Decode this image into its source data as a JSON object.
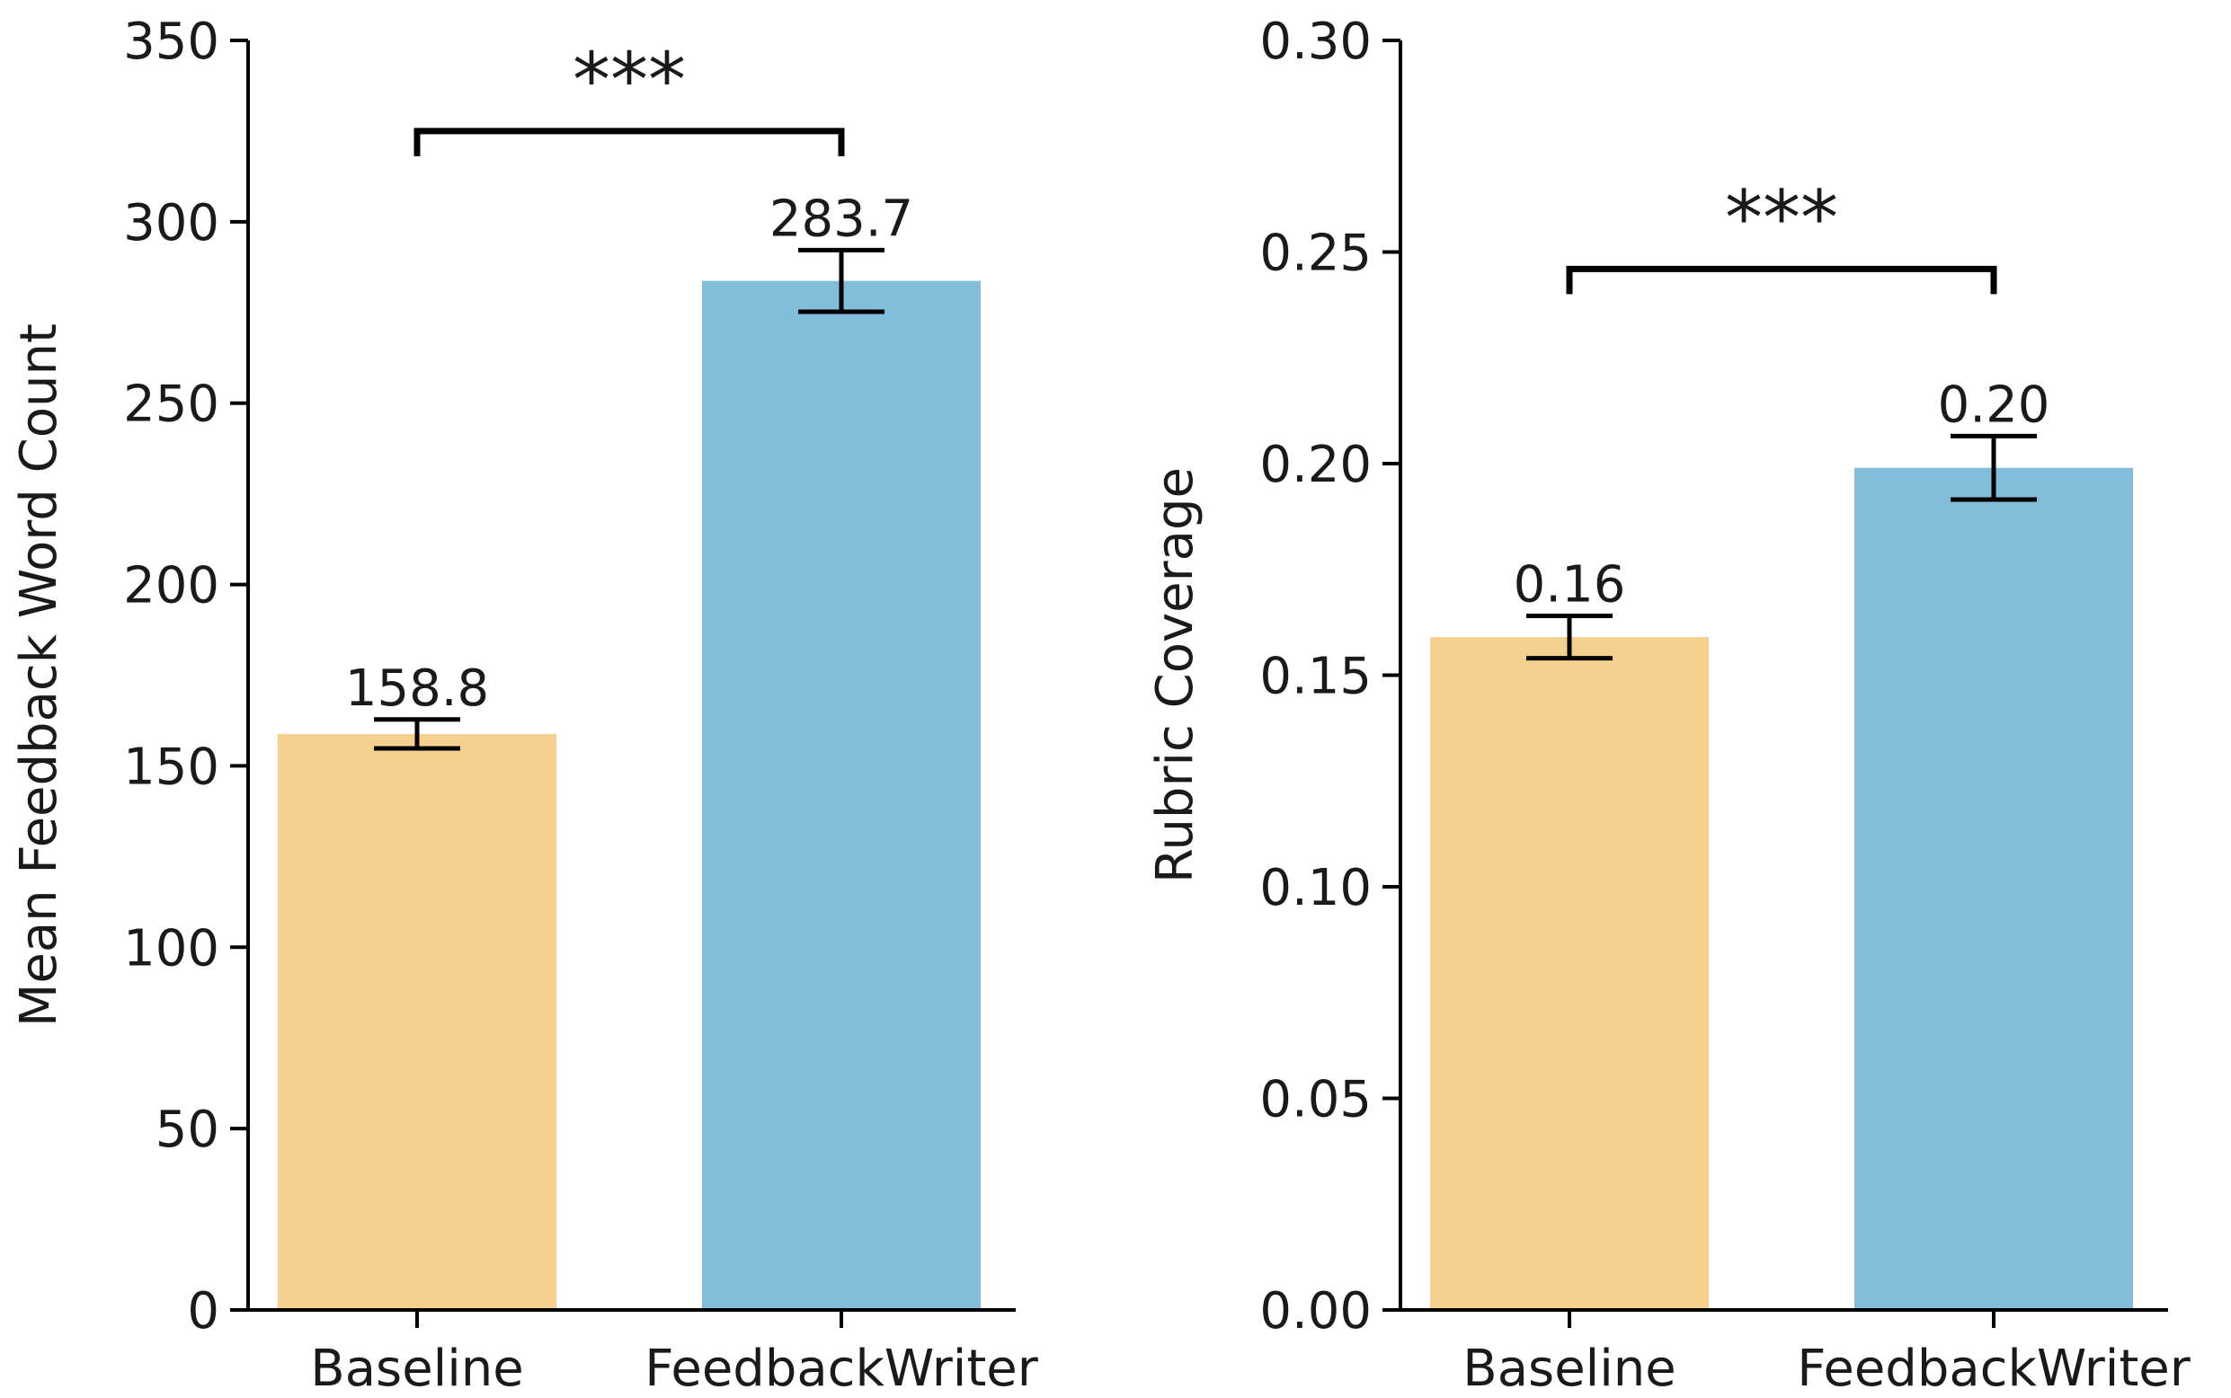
{
  "chart_data": [
    {
      "type": "bar",
      "title": "",
      "xlabel": "",
      "ylabel": "Mean Feedback Word Count",
      "ylim": [
        0,
        350
      ],
      "yticks": [
        0,
        50,
        100,
        150,
        200,
        250,
        300,
        350
      ],
      "ytick_labels": [
        "0",
        "50",
        "100",
        "150",
        "200",
        "250",
        "300",
        "350"
      ],
      "categories": [
        "Baseline",
        "FeedbackWriter"
      ],
      "values": [
        158.8,
        283.7
      ],
      "errors": [
        4.0,
        8.5
      ],
      "value_labels": [
        "158.8",
        "283.7"
      ],
      "colors": [
        "#f5d08e",
        "#82bddb"
      ],
      "significance": {
        "label": "***",
        "between": [
          0,
          1
        ],
        "level": 325
      },
      "grid": false
    },
    {
      "type": "bar",
      "title": "",
      "xlabel": "",
      "ylabel": "Rubric Coverage",
      "ylim": [
        0,
        0.3
      ],
      "yticks": [
        0,
        0.05,
        0.1,
        0.15,
        0.2,
        0.25,
        0.3
      ],
      "ytick_labels": [
        "0.00",
        "0.05",
        "0.10",
        "0.15",
        "0.20",
        "0.25",
        "0.30"
      ],
      "categories": [
        "Baseline",
        "FeedbackWriter"
      ],
      "values": [
        0.159,
        0.199
      ],
      "errors": [
        0.005,
        0.0075
      ],
      "value_labels": [
        "0.16",
        "0.20"
      ],
      "colors": [
        "#f5d08e",
        "#82bddb"
      ],
      "significance": {
        "label": "***",
        "between": [
          0,
          1
        ],
        "level": 0.246
      },
      "grid": false
    }
  ]
}
